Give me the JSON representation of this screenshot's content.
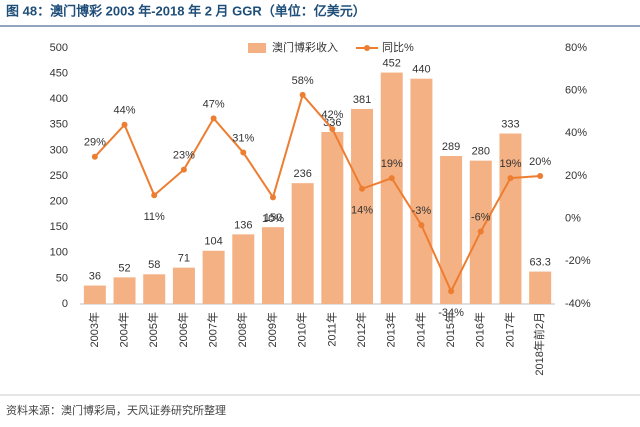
{
  "chart_data": {
    "type": "bar_line",
    "title": "图 48：澳门博彩 2003 年-2018 年 2 月 GGR（单位：亿美元）",
    "source": "资料来源：澳门博彩局，天风证券研究所整理",
    "categories": [
      "2003年",
      "2004年",
      "2005年",
      "2006年",
      "2007年",
      "2008年",
      "2009年",
      "2010年",
      "2011年",
      "2012年",
      "2013年",
      "2014年",
      "2015年",
      "2016年",
      "2017年",
      "2018年前2月"
    ],
    "series": [
      {
        "name": "澳门博彩收入",
        "color": "#f4b183",
        "kind": "bar",
        "values": [
          36,
          52,
          58,
          71,
          104,
          136,
          150,
          236,
          336,
          381,
          452,
          440,
          289,
          280,
          333,
          63.3
        ]
      },
      {
        "name": "同比%",
        "color": "#ed7d31",
        "kind": "line",
        "axis": "y2",
        "values": [
          29,
          44,
          11,
          23,
          47,
          31,
          10,
          58,
          42,
          14,
          19,
          -3,
          -34,
          -6,
          19,
          20
        ],
        "value_labels": [
          "29%",
          "44%",
          "11%",
          "23%",
          "47%",
          "31%",
          "10%",
          "58%",
          "42%",
          "14%",
          "19%",
          "-3%",
          "-34%",
          "-6%",
          "19%",
          "20%"
        ]
      }
    ],
    "ylim": [
      0,
      500
    ],
    "yticks": [
      0,
      50,
      100,
      150,
      200,
      250,
      300,
      350,
      400,
      450,
      500
    ],
    "y2lim": [
      -40,
      80
    ],
    "y2ticks": [
      {
        "value": -40,
        "label": "-40%"
      },
      {
        "value": -20,
        "label": "-20%"
      },
      {
        "value": 0,
        "label": "0%"
      },
      {
        "value": 20,
        "label": "20%"
      },
      {
        "value": 40,
        "label": "40%"
      },
      {
        "value": 60,
        "label": "60%"
      },
      {
        "value": 80,
        "label": "80%"
      }
    ]
  }
}
